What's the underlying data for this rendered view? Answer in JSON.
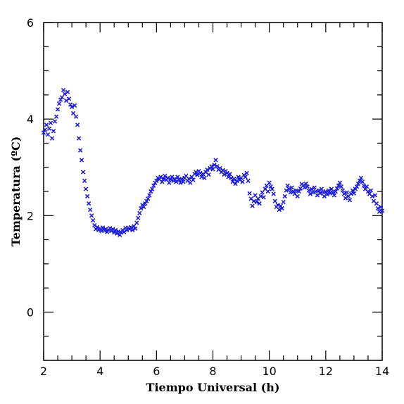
{
  "chart_data": {
    "type": "scatter",
    "title": "",
    "xlabel": "Tiempo Universal (h)",
    "ylabel": "Temperatura (ºC)",
    "xlim": [
      2,
      14
    ],
    "ylim": [
      -1,
      6
    ],
    "xticks": [
      "2",
      "4",
      "6",
      "8",
      "10",
      "12",
      "14"
    ],
    "yticks": [
      "0",
      "2",
      "4",
      "6"
    ],
    "marker": "x",
    "color": "#1f1fe0",
    "grid": false,
    "series": [
      {
        "points": [
          [
            2.0,
            3.72
          ],
          [
            2.05,
            3.78
          ],
          [
            2.1,
            3.88
          ],
          [
            2.15,
            3.68
          ],
          [
            2.2,
            3.8
          ],
          [
            2.25,
            3.92
          ],
          [
            2.3,
            3.6
          ],
          [
            2.35,
            3.75
          ],
          [
            2.4,
            3.95
          ],
          [
            2.45,
            4.05
          ],
          [
            2.5,
            4.2
          ],
          [
            2.55,
            4.32
          ],
          [
            2.6,
            4.4
          ],
          [
            2.65,
            4.45
          ],
          [
            2.7,
            4.6
          ],
          [
            2.75,
            4.52
          ],
          [
            2.8,
            4.38
          ],
          [
            2.85,
            4.56
          ],
          [
            2.9,
            4.42
          ],
          [
            2.95,
            4.3
          ],
          [
            3.0,
            4.25
          ],
          [
            3.05,
            4.12
          ],
          [
            3.1,
            4.28
          ],
          [
            3.15,
            4.05
          ],
          [
            3.2,
            3.88
          ],
          [
            3.25,
            3.6
          ],
          [
            3.3,
            3.35
          ],
          [
            3.35,
            3.15
          ],
          [
            3.4,
            2.9
          ],
          [
            3.45,
            2.72
          ],
          [
            3.5,
            2.55
          ],
          [
            3.55,
            2.4
          ],
          [
            3.6,
            2.25
          ],
          [
            3.65,
            2.12
          ],
          [
            3.7,
            2.0
          ],
          [
            3.75,
            1.9
          ],
          [
            3.8,
            1.8
          ],
          [
            3.85,
            1.72
          ],
          [
            3.9,
            1.76
          ],
          [
            3.95,
            1.7
          ],
          [
            4.0,
            1.73
          ],
          [
            4.05,
            1.68
          ],
          [
            4.1,
            1.75
          ],
          [
            4.15,
            1.69
          ],
          [
            4.2,
            1.72
          ],
          [
            4.25,
            1.66
          ],
          [
            4.3,
            1.7
          ],
          [
            4.35,
            1.74
          ],
          [
            4.4,
            1.68
          ],
          [
            4.45,
            1.72
          ],
          [
            4.5,
            1.65
          ],
          [
            4.55,
            1.7
          ],
          [
            4.6,
            1.63
          ],
          [
            4.65,
            1.67
          ],
          [
            4.7,
            1.6
          ],
          [
            4.75,
            1.65
          ],
          [
            4.8,
            1.7
          ],
          [
            4.85,
            1.66
          ],
          [
            4.9,
            1.74
          ],
          [
            4.95,
            1.7
          ],
          [
            5.0,
            1.75
          ],
          [
            5.05,
            1.72
          ],
          [
            5.1,
            1.76
          ],
          [
            5.15,
            1.7
          ],
          [
            5.2,
            1.78
          ],
          [
            5.25,
            1.73
          ],
          [
            5.3,
            1.85
          ],
          [
            5.35,
            1.95
          ],
          [
            5.4,
            2.05
          ],
          [
            5.45,
            2.15
          ],
          [
            5.5,
            2.22
          ],
          [
            5.55,
            2.18
          ],
          [
            5.6,
            2.25
          ],
          [
            5.65,
            2.3
          ],
          [
            5.7,
            2.35
          ],
          [
            5.75,
            2.42
          ],
          [
            5.8,
            2.5
          ],
          [
            5.85,
            2.55
          ],
          [
            5.9,
            2.62
          ],
          [
            5.95,
            2.68
          ],
          [
            6.0,
            2.72
          ],
          [
            6.05,
            2.78
          ],
          [
            6.1,
            2.75
          ],
          [
            6.15,
            2.8
          ],
          [
            6.2,
            2.7
          ],
          [
            6.25,
            2.76
          ],
          [
            6.3,
            2.82
          ],
          [
            6.35,
            2.74
          ],
          [
            6.4,
            2.78
          ],
          [
            6.45,
            2.68
          ],
          [
            6.5,
            2.75
          ],
          [
            6.55,
            2.8
          ],
          [
            6.6,
            2.72
          ],
          [
            6.65,
            2.76
          ],
          [
            6.7,
            2.7
          ],
          [
            6.75,
            2.8
          ],
          [
            6.8,
            2.74
          ],
          [
            6.85,
            2.68
          ],
          [
            6.9,
            2.76
          ],
          [
            6.95,
            2.7
          ],
          [
            7.0,
            2.78
          ],
          [
            7.05,
            2.82
          ],
          [
            7.1,
            2.72
          ],
          [
            7.15,
            2.76
          ],
          [
            7.2,
            2.68
          ],
          [
            7.25,
            2.8
          ],
          [
            7.3,
            2.74
          ],
          [
            7.35,
            2.86
          ],
          [
            7.4,
            2.9
          ],
          [
            7.45,
            2.84
          ],
          [
            7.5,
            2.92
          ],
          [
            7.55,
            2.88
          ],
          [
            7.6,
            2.8
          ],
          [
            7.65,
            2.86
          ],
          [
            7.7,
            2.78
          ],
          [
            7.75,
            2.9
          ],
          [
            7.8,
            2.95
          ],
          [
            7.85,
            2.85
          ],
          [
            7.9,
            2.98
          ],
          [
            7.95,
            3.02
          ],
          [
            8.0,
            2.96
          ],
          [
            8.05,
            3.05
          ],
          [
            8.1,
            3.15
          ],
          [
            8.15,
            3.02
          ],
          [
            8.2,
            2.95
          ],
          [
            8.25,
            2.98
          ],
          [
            8.3,
            2.9
          ],
          [
            8.35,
            2.94
          ],
          [
            8.4,
            2.85
          ],
          [
            8.45,
            2.92
          ],
          [
            8.5,
            2.88
          ],
          [
            8.55,
            2.8
          ],
          [
            8.6,
            2.86
          ],
          [
            8.65,
            2.78
          ],
          [
            8.7,
            2.7
          ],
          [
            8.75,
            2.76
          ],
          [
            8.8,
            2.66
          ],
          [
            8.85,
            2.72
          ],
          [
            8.9,
            2.8
          ],
          [
            8.95,
            2.74
          ],
          [
            9.0,
            2.78
          ],
          [
            9.05,
            2.7
          ],
          [
            9.1,
            2.84
          ],
          [
            9.15,
            2.8
          ],
          [
            9.2,
            2.88
          ],
          [
            9.25,
            2.72
          ],
          [
            9.3,
            2.46
          ],
          [
            9.35,
            2.35
          ],
          [
            9.4,
            2.2
          ],
          [
            9.45,
            2.3
          ],
          [
            9.5,
            2.42
          ],
          [
            9.55,
            2.28
          ],
          [
            9.6,
            2.35
          ],
          [
            9.65,
            2.25
          ],
          [
            9.7,
            2.4
          ],
          [
            9.75,
            2.48
          ],
          [
            9.8,
            2.38
          ],
          [
            9.85,
            2.55
          ],
          [
            9.9,
            2.62
          ],
          [
            9.95,
            2.5
          ],
          [
            10.0,
            2.68
          ],
          [
            10.05,
            2.6
          ],
          [
            10.1,
            2.55
          ],
          [
            10.15,
            2.45
          ],
          [
            10.2,
            2.3
          ],
          [
            10.25,
            2.18
          ],
          [
            10.3,
            2.22
          ],
          [
            10.35,
            2.12
          ],
          [
            10.4,
            2.2
          ],
          [
            10.45,
            2.15
          ],
          [
            10.5,
            2.28
          ],
          [
            10.55,
            2.4
          ],
          [
            10.6,
            2.52
          ],
          [
            10.65,
            2.62
          ],
          [
            10.7,
            2.55
          ],
          [
            10.75,
            2.48
          ],
          [
            10.8,
            2.58
          ],
          [
            10.85,
            2.5
          ],
          [
            10.9,
            2.45
          ],
          [
            10.95,
            2.52
          ],
          [
            11.0,
            2.4
          ],
          [
            11.05,
            2.5
          ],
          [
            11.1,
            2.56
          ],
          [
            11.15,
            2.65
          ],
          [
            11.2,
            2.62
          ],
          [
            11.25,
            2.58
          ],
          [
            11.3,
            2.66
          ],
          [
            11.35,
            2.6
          ],
          [
            11.4,
            2.52
          ],
          [
            11.45,
            2.45
          ],
          [
            11.5,
            2.55
          ],
          [
            11.55,
            2.48
          ],
          [
            11.6,
            2.58
          ],
          [
            11.65,
            2.5
          ],
          [
            11.7,
            2.42
          ],
          [
            11.75,
            2.52
          ],
          [
            11.8,
            2.46
          ],
          [
            11.85,
            2.55
          ],
          [
            11.9,
            2.48
          ],
          [
            11.95,
            2.4
          ],
          [
            12.0,
            2.5
          ],
          [
            12.05,
            2.44
          ],
          [
            12.1,
            2.52
          ],
          [
            12.15,
            2.46
          ],
          [
            12.2,
            2.55
          ],
          [
            12.25,
            2.48
          ],
          [
            12.3,
            2.42
          ],
          [
            12.35,
            2.5
          ],
          [
            12.4,
            2.56
          ],
          [
            12.45,
            2.62
          ],
          [
            12.5,
            2.68
          ],
          [
            12.55,
            2.6
          ],
          [
            12.6,
            2.52
          ],
          [
            12.65,
            2.45
          ],
          [
            12.7,
            2.36
          ],
          [
            12.75,
            2.48
          ],
          [
            12.8,
            2.4
          ],
          [
            12.85,
            2.32
          ],
          [
            12.9,
            2.45
          ],
          [
            12.95,
            2.52
          ],
          [
            13.0,
            2.46
          ],
          [
            13.05,
            2.55
          ],
          [
            13.1,
            2.6
          ],
          [
            13.15,
            2.66
          ],
          [
            13.2,
            2.72
          ],
          [
            13.25,
            2.78
          ],
          [
            13.3,
            2.7
          ],
          [
            13.35,
            2.62
          ],
          [
            13.4,
            2.55
          ],
          [
            13.45,
            2.6
          ],
          [
            13.5,
            2.5
          ],
          [
            13.55,
            2.45
          ],
          [
            13.6,
            2.52
          ],
          [
            13.65,
            2.4
          ],
          [
            13.7,
            2.3
          ],
          [
            13.75,
            2.42
          ],
          [
            13.8,
            2.25
          ],
          [
            13.85,
            2.15
          ],
          [
            13.9,
            2.08
          ],
          [
            13.95,
            2.18
          ],
          [
            14.0,
            2.1
          ]
        ]
      }
    ]
  }
}
